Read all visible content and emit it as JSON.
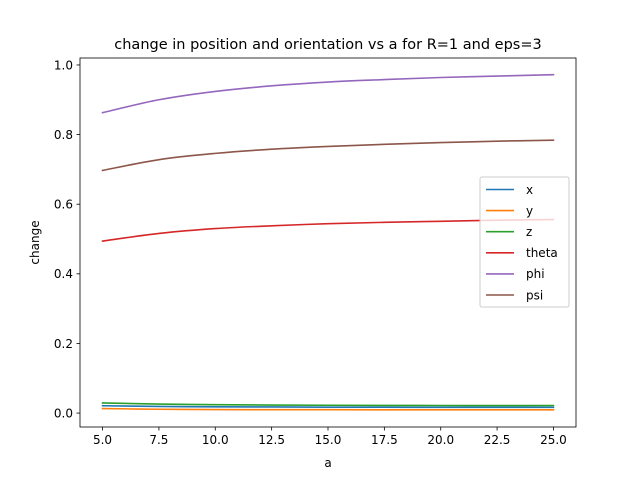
{
  "chart_data": {
    "type": "line",
    "title": "change in position and orientation vs a for R=1 and eps=3",
    "xlabel": "a",
    "ylabel": "change",
    "xlim": [
      4.0,
      26.0
    ],
    "ylim": [
      -0.04,
      1.02
    ],
    "xticks": [
      5.0,
      7.5,
      10.0,
      12.5,
      15.0,
      17.5,
      20.0,
      22.5,
      25.0
    ],
    "xtick_labels": [
      "5.0",
      "7.5",
      "10.0",
      "12.5",
      "15.0",
      "17.5",
      "20.0",
      "22.5",
      "25.0"
    ],
    "yticks": [
      0.0,
      0.2,
      0.4,
      0.6,
      0.8,
      1.0
    ],
    "ytick_labels": [
      "0.0",
      "0.2",
      "0.4",
      "0.6",
      "0.8",
      "1.0"
    ],
    "grid": false,
    "legend_position": "center-right",
    "x": [
      5,
      7.5,
      10,
      12.5,
      15,
      17.5,
      20,
      22.5,
      25
    ],
    "series": [
      {
        "name": "x",
        "color": "#1f77b4",
        "values": [
          0.021,
          0.019,
          0.018,
          0.0175,
          0.017,
          0.0168,
          0.0166,
          0.0165,
          0.0164
        ]
      },
      {
        "name": "y",
        "color": "#ff7f0e",
        "values": [
          0.013,
          0.011,
          0.01,
          0.0098,
          0.0096,
          0.0095,
          0.0094,
          0.0094,
          0.0093
        ]
      },
      {
        "name": "z",
        "color": "#2ca02c",
        "values": [
          0.029,
          0.026,
          0.024,
          0.023,
          0.0225,
          0.022,
          0.0218,
          0.0216,
          0.0215
        ]
      },
      {
        "name": "theta",
        "color": "#d62728",
        "values": [
          0.494,
          0.516,
          0.53,
          0.538,
          0.544,
          0.548,
          0.551,
          0.554,
          0.556
        ]
      },
      {
        "name": "phi",
        "color": "#9467bd",
        "values": [
          0.863,
          0.9,
          0.924,
          0.94,
          0.951,
          0.958,
          0.964,
          0.968,
          0.972
        ]
      },
      {
        "name": "psi",
        "color": "#8c564b",
        "values": [
          0.697,
          0.728,
          0.746,
          0.758,
          0.766,
          0.772,
          0.777,
          0.781,
          0.784
        ]
      }
    ]
  }
}
